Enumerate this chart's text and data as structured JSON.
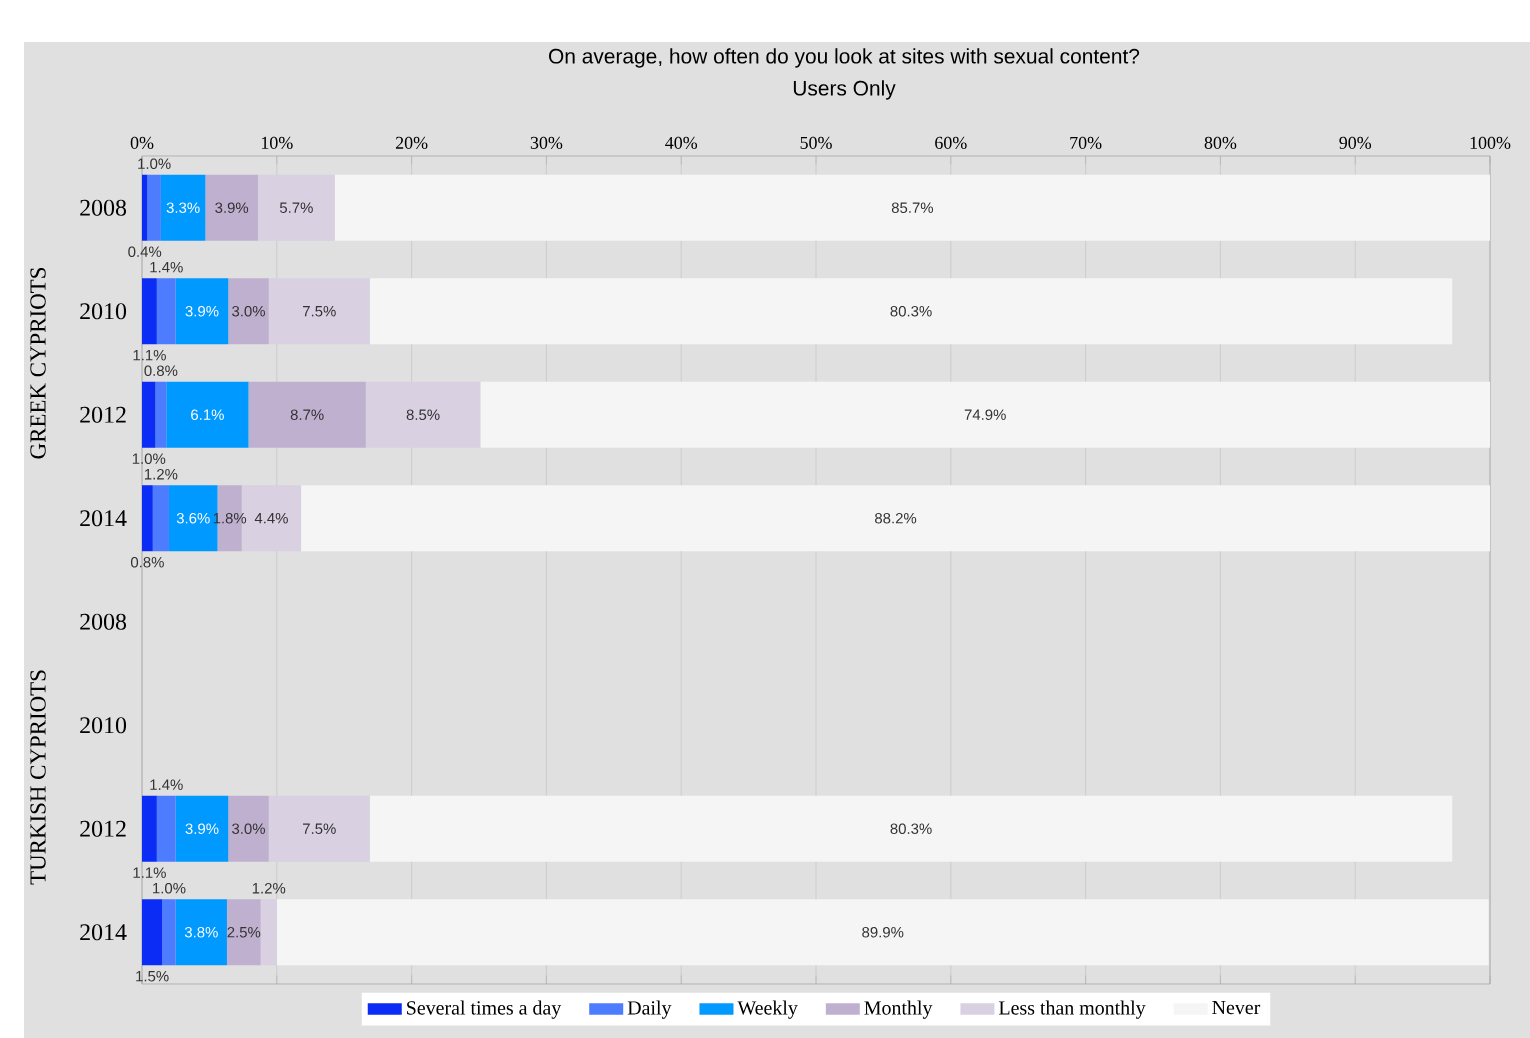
{
  "chart_data": {
    "type": "bar",
    "orientation": "horizontal",
    "stacked": true,
    "title": "On average, how often do you look at sites with sexual content?",
    "subtitle": "Users Only",
    "categories": [
      "2008",
      "2010",
      "2012",
      "2014",
      "2008",
      "2010",
      "2012",
      "2014"
    ],
    "annotations": [
      "GREEK CYPRIOTS",
      "TURKISH CYPRIOTS"
    ],
    "series": [
      {
        "name": "Several times a day",
        "color": "#0a2cf5",
        "values": [
          0.4,
          1.1,
          1.0,
          0.8,
          null,
          null,
          1.1,
          1.5
        ],
        "value_labels": [
          "0.4%",
          "1.1%",
          "1.0%",
          "0.8%",
          null,
          null,
          "1.1%",
          "1.5%"
        ]
      },
      {
        "name": "Daily",
        "color": "#4d7cff",
        "values": [
          1.0,
          1.4,
          0.8,
          1.2,
          null,
          null,
          1.4,
          1.0
        ],
        "value_labels": [
          "1.0%",
          "1.4%",
          "0.8%",
          "1.2%",
          null,
          null,
          "1.4%",
          "1.0%"
        ]
      },
      {
        "name": "Weekly",
        "color": "#0099ff",
        "values": [
          3.3,
          3.9,
          6.1,
          3.6,
          null,
          null,
          3.9,
          3.8
        ],
        "value_labels": [
          "3.3%",
          "3.9%",
          "6.1%",
          "3.6%",
          null,
          null,
          "3.9%",
          "3.8%"
        ]
      },
      {
        "name": "Monthly",
        "color": "#bfb0d0",
        "values": [
          3.9,
          3.0,
          8.7,
          1.8,
          null,
          null,
          3.0,
          2.5
        ],
        "value_labels": [
          "3.9%",
          "3.0%",
          "8.7%",
          "1.8%",
          null,
          null,
          "3.0%",
          "2.5%"
        ]
      },
      {
        "name": "Less than monthly",
        "color": "#d9d0e2",
        "values": [
          5.7,
          7.5,
          8.5,
          4.4,
          null,
          null,
          7.5,
          1.2
        ],
        "value_labels": [
          "5.7%",
          "7.5%",
          "8.5%",
          "4.4%",
          null,
          null,
          "7.5%",
          "1.2%"
        ]
      },
      {
        "name": "Never",
        "color": "#f5f5f5",
        "values": [
          85.7,
          80.3,
          74.9,
          88.2,
          null,
          null,
          80.3,
          89.9
        ],
        "value_labels": [
          "85.7%",
          "80.3%",
          "74.9%",
          "88.2%",
          null,
          null,
          "80.3%",
          "89.9%"
        ]
      }
    ],
    "xlim": [
      0,
      100
    ],
    "xticks": [
      {
        "value": 0,
        "label": "0%"
      },
      {
        "value": 10,
        "label": "10%"
      },
      {
        "value": 20,
        "label": "20%"
      },
      {
        "value": 30,
        "label": "30%"
      },
      {
        "value": 40,
        "label": "40%"
      },
      {
        "value": 50,
        "label": "50%"
      },
      {
        "value": 60,
        "label": "60%"
      },
      {
        "value": 70,
        "label": "70%"
      },
      {
        "value": 80,
        "label": "80%"
      },
      {
        "value": 90,
        "label": "90%"
      },
      {
        "value": 100,
        "label": "100%"
      }
    ],
    "grid": "x",
    "legend": "bottom"
  }
}
